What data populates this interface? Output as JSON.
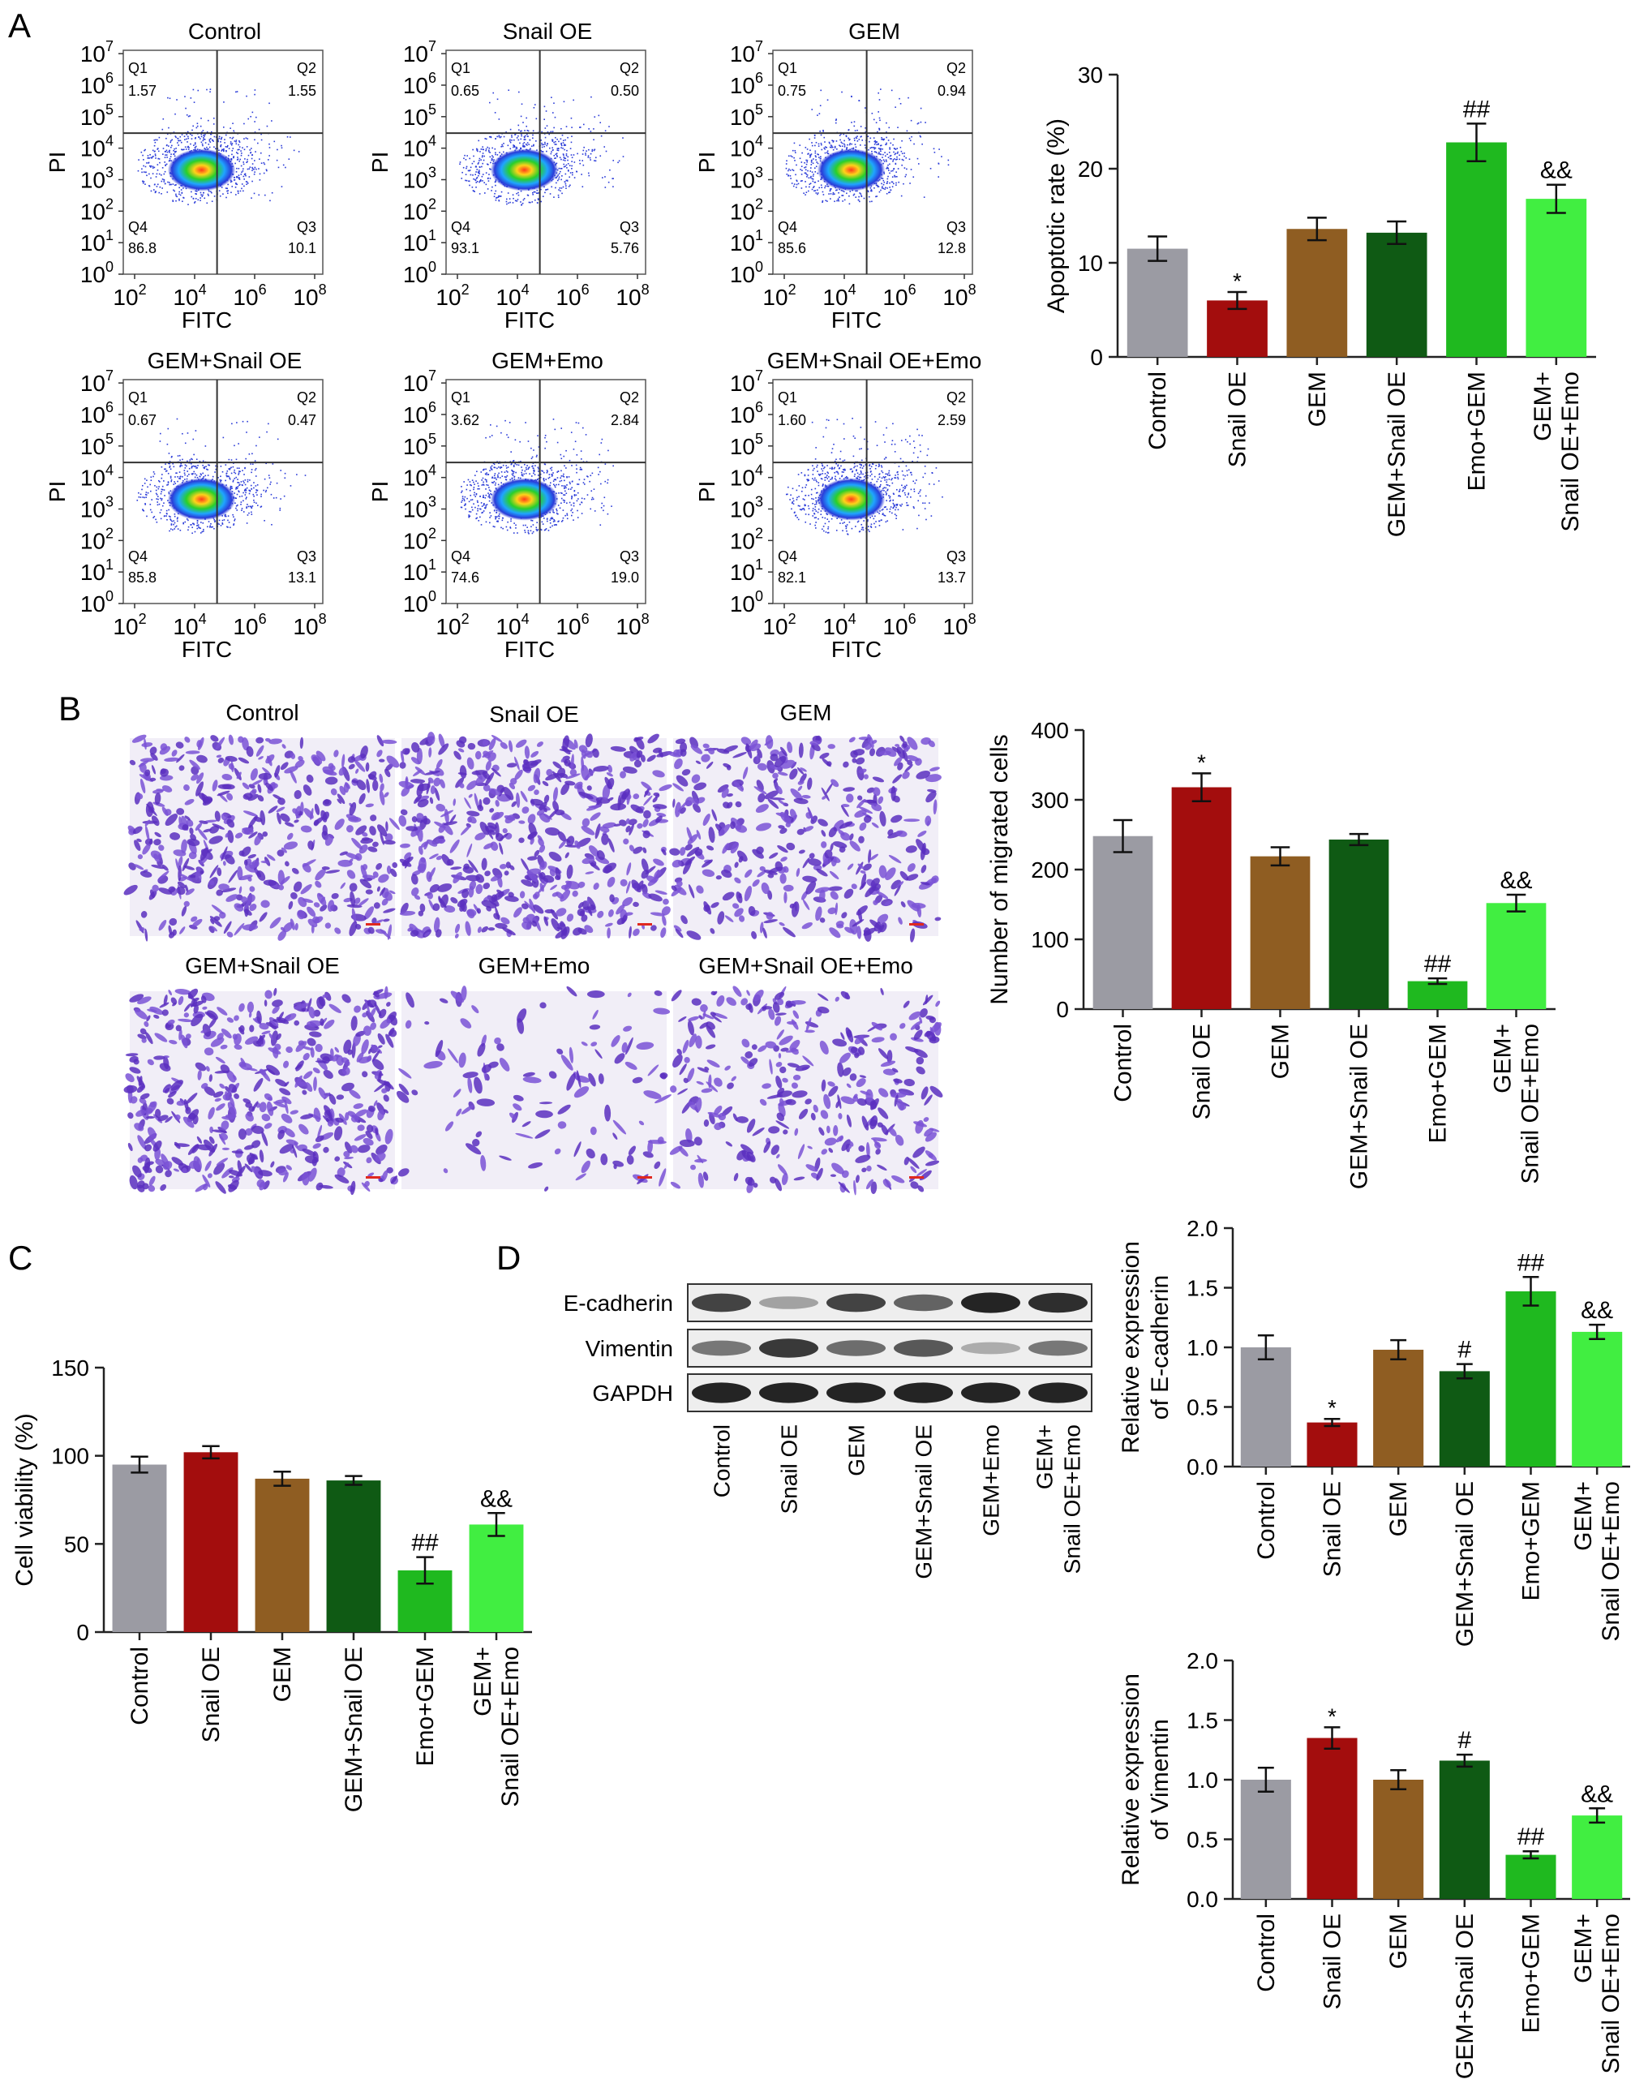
{
  "colors": {
    "control": "#9b9ba3",
    "snail_oe": "#a30d0d",
    "gem": "#8f5d22",
    "gem_snail_oe": "#0f5a14",
    "emo_gem": "#1fb91f",
    "gem_snail_oe_emo": "#41ee41",
    "axis": "#222222",
    "quad_line": "#333333"
  },
  "panel_labels": {
    "a": "A",
    "b": "B",
    "c": "C",
    "d": "D"
  },
  "flow_cytometry": {
    "x_axis_label": "FITC",
    "y_axis_label": "PI",
    "x_ticks": [
      {
        "base": "10",
        "exp": "2"
      },
      {
        "base": "10",
        "exp": "4"
      },
      {
        "base": "10",
        "exp": "6"
      },
      {
        "base": "10",
        "exp": "8"
      }
    ],
    "y_ticks": [
      {
        "base": "10",
        "exp": "0"
      },
      {
        "base": "10",
        "exp": "1"
      },
      {
        "base": "10",
        "exp": "2"
      },
      {
        "base": "10",
        "exp": "3"
      },
      {
        "base": "10",
        "exp": "4"
      },
      {
        "base": "10",
        "exp": "5"
      },
      {
        "base": "10",
        "exp": "6"
      },
      {
        "base": "10",
        "exp": "7"
      }
    ],
    "quadrant_names": {
      "q1": "Q1",
      "q2": "Q2",
      "q3": "Q3",
      "q4": "Q4"
    },
    "plots": [
      {
        "title": "Control",
        "q1": "1.57",
        "q2": "1.55",
        "q3": "10.1",
        "q4": "86.8"
      },
      {
        "title": "Snail OE",
        "q1": "0.65",
        "q2": "0.50",
        "q3": "5.76",
        "q4": "93.1"
      },
      {
        "title": "GEM",
        "q1": "0.75",
        "q2": "0.94",
        "q3": "12.8",
        "q4": "85.6"
      },
      {
        "title": "GEM+Snail OE",
        "q1": "0.67",
        "q2": "0.47",
        "q3": "13.1",
        "q4": "85.8"
      },
      {
        "title": "GEM+Emo",
        "q1": "3.62",
        "q2": "2.84",
        "q3": "19.0",
        "q4": "74.6"
      },
      {
        "title": "GEM+Snail OE+Emo",
        "q1": "1.60",
        "q2": "2.59",
        "q3": "13.7",
        "q4": "82.1"
      }
    ]
  },
  "migration_images": {
    "titles": [
      "Control",
      "Snail OE",
      "GEM",
      "GEM+Snail OE",
      "GEM+Emo",
      "GEM+Snail OE+Emo"
    ],
    "cell_density": [
      0.85,
      0.95,
      0.7,
      0.9,
      0.15,
      0.55
    ]
  },
  "western_blot": {
    "rows": [
      "E-cadherin",
      "Vimentin",
      "GAPDH"
    ],
    "lanes": [
      "Control",
      "Snail OE",
      "GEM",
      "GEM+Snail OE",
      "GEM+Emo",
      [
        "GEM+",
        "Snail OE+Emo"
      ]
    ],
    "band_intensity": [
      [
        0.8,
        0.35,
        0.8,
        0.65,
        0.95,
        0.9
      ],
      [
        0.55,
        0.85,
        0.6,
        0.7,
        0.3,
        0.55
      ],
      [
        0.95,
        0.95,
        0.95,
        0.95,
        0.95,
        0.95
      ]
    ]
  },
  "chart_data": [
    {
      "id": "apoptosis",
      "type": "bar",
      "categories": [
        "Control",
        "Snail OE",
        "GEM",
        "GEM+Snail OE",
        "Emo+GEM",
        [
          "GEM+",
          "Snail OE+Emo"
        ]
      ],
      "values": [
        11.5,
        6.0,
        13.6,
        13.2,
        22.8,
        16.8
      ],
      "errors": [
        1.3,
        0.9,
        1.2,
        1.2,
        2.0,
        1.5
      ],
      "annotations": [
        "",
        "*",
        "",
        "",
        "##",
        "&&"
      ],
      "title": "",
      "xlabel": "",
      "ylabel": "Apoptotic rate (%)",
      "ylim": [
        0,
        30
      ],
      "yticks": [
        0,
        10,
        20,
        30
      ],
      "yticklabels": [
        "0",
        "10",
        "20",
        "30"
      ],
      "grid": false
    },
    {
      "id": "migration",
      "type": "bar",
      "categories": [
        "Control",
        "Snail OE",
        "GEM",
        "GEM+Snail OE",
        "Emo+GEM",
        [
          "GEM+",
          "Snail OE+Emo"
        ]
      ],
      "values": [
        248,
        318,
        219,
        243,
        40,
        152
      ],
      "errors": [
        23,
        20,
        13,
        8,
        4,
        12
      ],
      "annotations": [
        "",
        "*",
        "",
        "",
        "##",
        "&&"
      ],
      "title": "",
      "xlabel": "",
      "ylabel": "Number of migrated cells",
      "ylim": [
        0,
        400
      ],
      "yticks": [
        0,
        100,
        200,
        300,
        400
      ],
      "yticklabels": [
        "0",
        "100",
        "200",
        "300",
        "400"
      ],
      "grid": false
    },
    {
      "id": "viability",
      "type": "bar",
      "categories": [
        "Control",
        "Snail OE",
        "GEM",
        "GEM+Snail OE",
        "Emo+GEM",
        [
          "GEM+",
          "Snail OE+Emo"
        ]
      ],
      "values": [
        95,
        102,
        87,
        86,
        35,
        61
      ],
      "errors": [
        4.5,
        3.5,
        4,
        2.5,
        7.5,
        6.5
      ],
      "annotations": [
        "",
        "",
        "",
        "",
        "##",
        "&&"
      ],
      "title": "",
      "xlabel": "",
      "ylabel": "Cell viability (%)",
      "ylim": [
        0,
        150
      ],
      "yticks": [
        0,
        50,
        100,
        150
      ],
      "yticklabels": [
        "0",
        "50",
        "100",
        "150"
      ],
      "grid": false
    },
    {
      "id": "ecadherin",
      "type": "bar",
      "categories": [
        "Control",
        "Snail OE",
        "GEM",
        "GEM+Snail OE",
        "Emo+GEM",
        [
          "GEM+",
          "Snail OE+Emo"
        ]
      ],
      "values": [
        1.0,
        0.37,
        0.98,
        0.8,
        1.47,
        1.13
      ],
      "errors": [
        0.1,
        0.03,
        0.08,
        0.06,
        0.12,
        0.06
      ],
      "annotations": [
        "",
        "*",
        "",
        "#",
        "##",
        "&&"
      ],
      "title": "",
      "xlabel": "",
      "ylabel": [
        "Relative expression",
        "of E-cadherin"
      ],
      "ylim": [
        0,
        2.0
      ],
      "yticks": [
        0,
        0.5,
        1.0,
        1.5,
        2.0
      ],
      "yticklabels": [
        "0.0",
        "0.5",
        "1.0",
        "1.5",
        "2.0"
      ],
      "grid": false
    },
    {
      "id": "vimentin",
      "type": "bar",
      "categories": [
        "Control",
        "Snail OE",
        "GEM",
        "GEM+Snail OE",
        "Emo+GEM",
        [
          "GEM+",
          "Snail OE+Emo"
        ]
      ],
      "values": [
        1.0,
        1.35,
        1.0,
        1.16,
        0.37,
        0.7
      ],
      "errors": [
        0.1,
        0.09,
        0.08,
        0.05,
        0.03,
        0.06
      ],
      "annotations": [
        "",
        "*",
        "",
        "#",
        "##",
        "&&"
      ],
      "title": "",
      "xlabel": "",
      "ylabel": [
        "Relative expression",
        "of Vimentin"
      ],
      "ylim": [
        0,
        2.0
      ],
      "yticks": [
        0,
        0.5,
        1.0,
        1.5,
        2.0
      ],
      "yticklabels": [
        "0.0",
        "0.5",
        "1.0",
        "1.5",
        "2.0"
      ],
      "grid": false
    }
  ]
}
